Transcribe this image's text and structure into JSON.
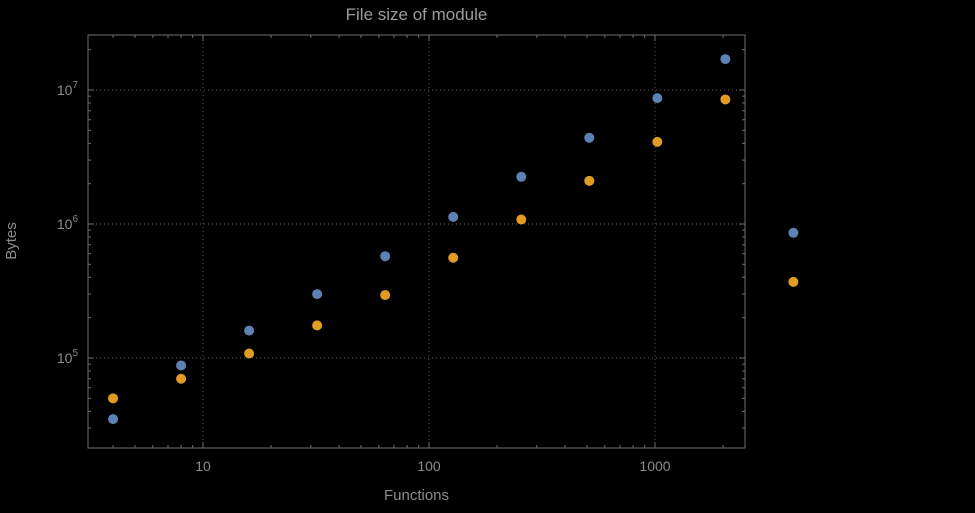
{
  "figure": {
    "background": "#000000",
    "frame_color": "#707070",
    "grid_color": "#5e5e5e",
    "text_color": "#8c8c8c",
    "title_color": "#9c9c9c"
  },
  "chart_data": {
    "type": "scatter",
    "title": "File size of module",
    "xlabel": "Functions",
    "ylabel": "Bytes",
    "x_scale": "log",
    "y_scale": "log",
    "grid": "dotted",
    "legend": "none",
    "x": [
      4,
      8,
      16,
      32,
      64,
      128,
      256,
      512,
      1024,
      2048,
      4096
    ],
    "series": [
      {
        "name": "blue",
        "color": "#5E81B5",
        "values": [
          35000,
          88000,
          160000,
          300000,
          575000,
          1130000,
          2250000,
          4400000,
          8700000,
          17000000,
          860000
        ]
      },
      {
        "name": "orange",
        "color": "#E19C24",
        "values": [
          50000,
          70000,
          108000,
          175000,
          295000,
          560000,
          1080000,
          2100000,
          4100000,
          8500000,
          370000
        ]
      }
    ],
    "x_ticks": [
      10,
      100,
      1000
    ],
    "x_tick_labels": [
      "10",
      "100",
      "1000"
    ],
    "y_ticks": [
      100000,
      1000000,
      10000000
    ],
    "y_tick_labels": [
      "10^5",
      "10^6",
      "10^7"
    ],
    "xlim": [
      3.1,
      2500
    ],
    "ylim": [
      21000,
      25700000
    ]
  }
}
